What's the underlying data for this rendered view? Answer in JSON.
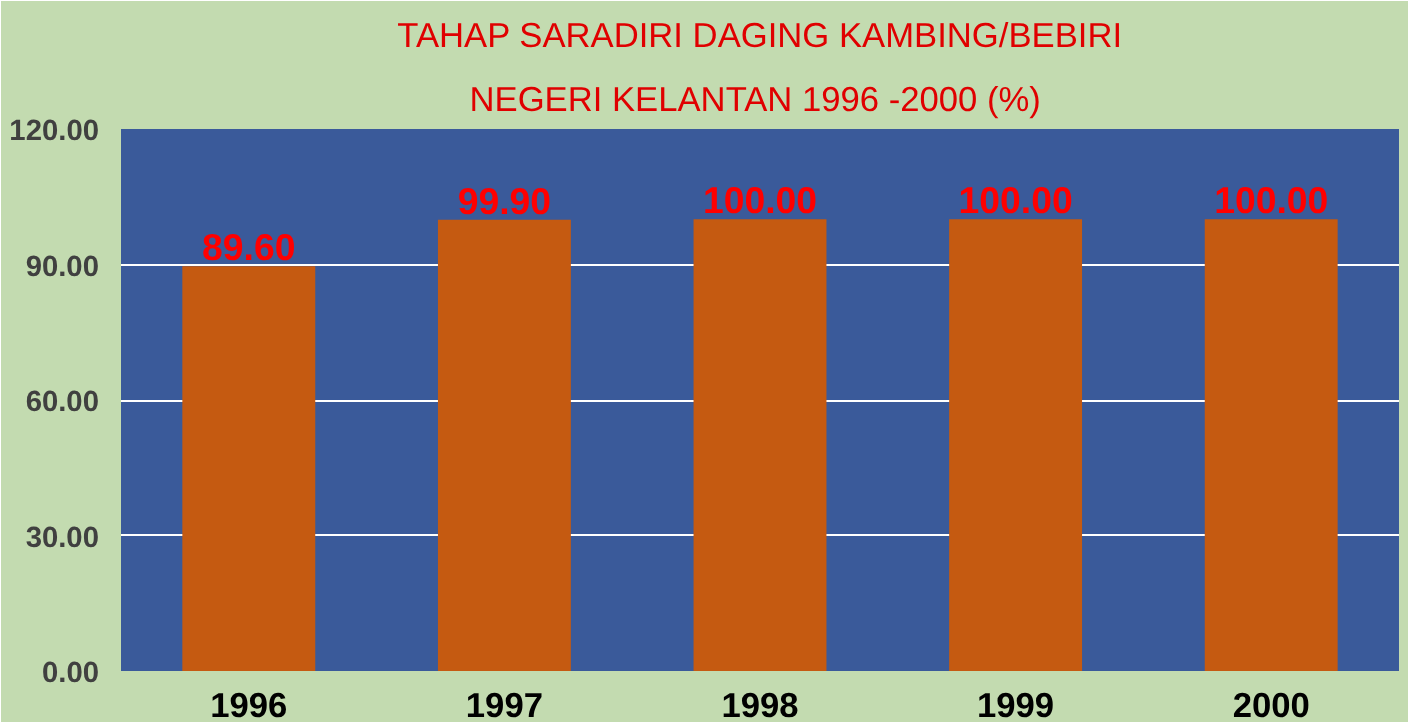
{
  "chart_data": {
    "type": "bar",
    "title": "TAHAP SARADIRI DAGING KAMBING/BEBIRI",
    "subtitle": "NEGERI KELANTAN  1996 -2000 (%)",
    "categories": [
      "1996",
      "1997",
      "1998",
      "1999",
      "2000"
    ],
    "values": [
      89.6,
      99.9,
      100.0,
      100.0,
      100.0
    ],
    "value_labels": [
      "89.60",
      "99.90",
      "100.00",
      "100.00",
      "100.00"
    ],
    "color": "#c55a11",
    "ylim": [
      0,
      120
    ],
    "yticks": [
      {
        "value": 0,
        "label": "0.00"
      },
      {
        "value": 30,
        "label": "30.00"
      },
      {
        "value": 60,
        "label": "60.00"
      },
      {
        "value": 90,
        "label": "90.00"
      },
      {
        "value": 120,
        "label": "120.00"
      }
    ],
    "grid": "y"
  }
}
